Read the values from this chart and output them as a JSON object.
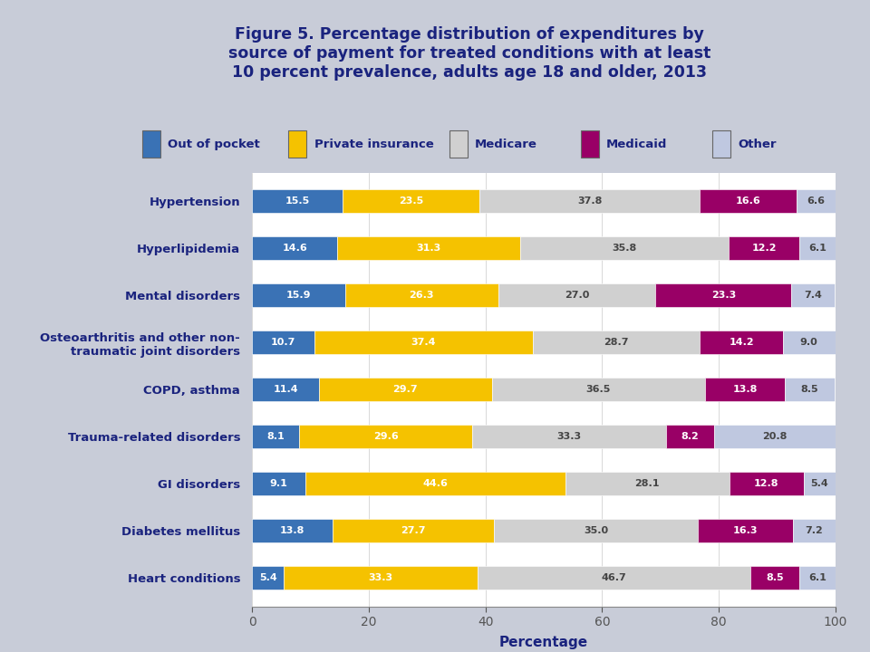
{
  "title_line1": "Figure 5. Percentage distribution of expenditures by",
  "title_line2": "source of payment for treated conditions with at least",
  "title_line3": "10 percent prevalence, adults age 18 and older, 2013",
  "categories": [
    "Hypertension",
    "Hyperlipidemia",
    "Mental disorders",
    "Osteoarthritis and other non-\ntraumatic joint disorders",
    "COPD, asthma",
    "Trauma-related disorders",
    "GI disorders",
    "Diabetes mellitus",
    "Heart conditions"
  ],
  "series": [
    {
      "label": "Out of pocket",
      "color": "#3A72B5",
      "values": [
        15.5,
        14.6,
        15.9,
        10.7,
        11.4,
        8.1,
        9.1,
        13.8,
        5.4
      ]
    },
    {
      "label": "Private insurance",
      "color": "#F5C200",
      "values": [
        23.5,
        31.3,
        26.3,
        37.4,
        29.7,
        29.6,
        44.6,
        27.7,
        33.3
      ]
    },
    {
      "label": "Medicare",
      "color": "#D0D0D0",
      "values": [
        37.8,
        35.8,
        27.0,
        28.7,
        36.5,
        33.3,
        28.1,
        35.0,
        46.7
      ]
    },
    {
      "label": "Medicaid",
      "color": "#990066",
      "values": [
        16.6,
        12.2,
        23.3,
        14.2,
        13.8,
        8.2,
        12.8,
        16.3,
        8.5
      ]
    },
    {
      "label": "Other",
      "color": "#BFC8E0",
      "values": [
        6.6,
        6.1,
        7.4,
        9.0,
        8.5,
        20.8,
        5.4,
        7.2,
        6.1
      ]
    }
  ],
  "xlabel": "Percentage",
  "xlim": [
    0,
    100
  ],
  "xticks": [
    0,
    20,
    40,
    60,
    80,
    100
  ],
  "header_bg": "#D0D4DC",
  "plot_bg_color": "#FFFFFF",
  "fig_bg_color": "#C8CCD8",
  "legend_border_color": "#3A5AA0",
  "title_color": "#1A237E",
  "label_color": "#1A237E",
  "bar_height": 0.5,
  "title_fontsize": 12.5,
  "label_fontsize": 9.5,
  "tick_fontsize": 10,
  "value_fontsize": 8.0
}
